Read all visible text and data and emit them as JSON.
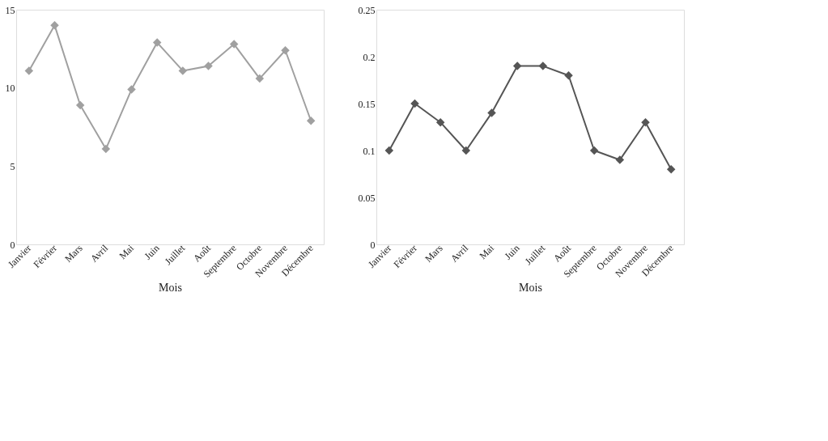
{
  "chart_data": [
    {
      "type": "line",
      "xlabel": "Mois",
      "categories": [
        "Janvier",
        "Février",
        "Mars",
        "Avril",
        "Mai",
        "Juin",
        "Juillet",
        "Août",
        "Septembre",
        "Octobre",
        "Novembre",
        "Décembre"
      ],
      "series": [
        {
          "color": "#a0a0a0",
          "values": [
            11.1,
            14.0,
            8.9,
            6.1,
            9.9,
            12.9,
            11.1,
            11.4,
            12.8,
            10.6,
            12.4,
            7.9
          ]
        }
      ],
      "ylim": [
        0,
        15
      ],
      "yticks": [
        0,
        5,
        10,
        15
      ],
      "grid": false,
      "marker": "diamond",
      "line_style": "solid"
    },
    {
      "type": "line",
      "xlabel": "Mois",
      "categories": [
        "Janvier",
        "Février",
        "Mars",
        "Avril",
        "Mai",
        "Juin",
        "Juillet",
        "Août",
        "Septembre",
        "Octobre",
        "Novembre",
        "Décembre"
      ],
      "series": [
        {
          "color": "#555555",
          "values": [
            0.1,
            0.15,
            0.13,
            0.1,
            0.14,
            0.19,
            0.19,
            0.18,
            0.1,
            0.09,
            0.13,
            0.08
          ]
        }
      ],
      "ylim": [
        0,
        0.25
      ],
      "yticks": [
        0,
        0.05,
        0.1,
        0.15,
        0.2,
        0.25
      ],
      "grid": false,
      "marker": "diamond",
      "line_style": "solid"
    }
  ]
}
